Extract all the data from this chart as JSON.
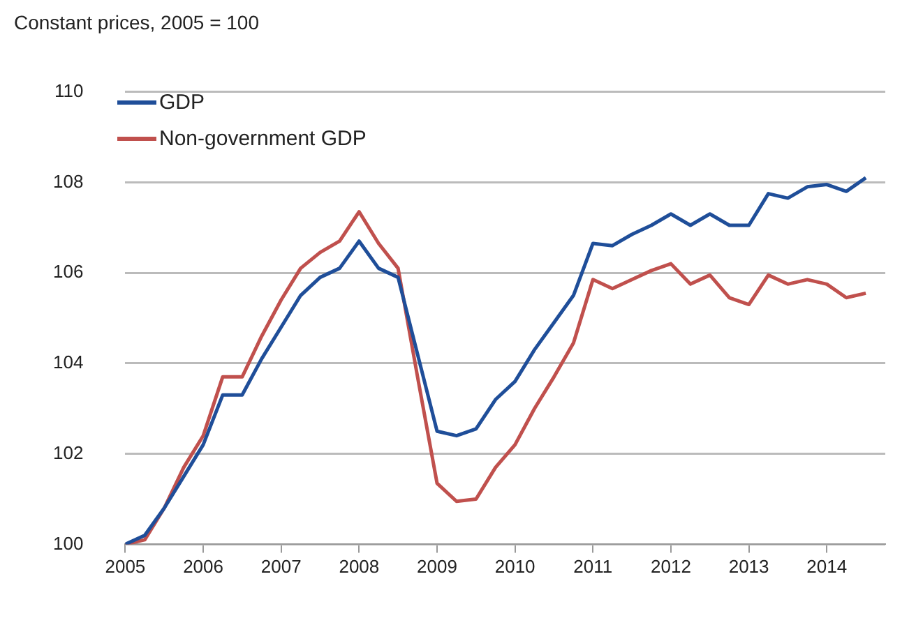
{
  "chart_data": {
    "type": "line",
    "ylabel": "Constant prices, 2005 = 100",
    "x": [
      2005,
      2005.25,
      2005.5,
      2005.75,
      2006,
      2006.25,
      2006.5,
      2006.75,
      2007,
      2007.25,
      2007.5,
      2007.75,
      2008,
      2008.25,
      2008.5,
      2008.75,
      2009,
      2009.25,
      2009.5,
      2009.75,
      2010,
      2010.25,
      2010.5,
      2010.75,
      2011,
      2011.25,
      2011.5,
      2011.75,
      2012,
      2012.25,
      2012.5,
      2012.75,
      2013,
      2013.25,
      2013.5,
      2013.75,
      2014,
      2014.25,
      2014.5
    ],
    "series": [
      {
        "name": "GDP",
        "color": "#1f4e99",
        "values": [
          100.0,
          100.2,
          100.8,
          101.5,
          102.2,
          103.3,
          103.3,
          104.1,
          104.8,
          105.5,
          105.9,
          106.1,
          106.7,
          106.1,
          105.9,
          104.2,
          102.5,
          102.4,
          102.55,
          103.2,
          103.6,
          104.3,
          104.9,
          105.5,
          106.65,
          106.6,
          106.85,
          107.05,
          107.3,
          107.05,
          107.3,
          107.05,
          107.05,
          107.75,
          107.65,
          107.9,
          107.95,
          107.8,
          108.1
        ]
      },
      {
        "name": "Non-government GDP",
        "color": "#c0504d",
        "values": [
          100.0,
          100.1,
          100.8,
          101.7,
          102.4,
          103.7,
          103.7,
          104.6,
          105.4,
          106.1,
          106.45,
          106.7,
          107.35,
          106.65,
          106.1,
          103.7,
          101.35,
          100.95,
          101.0,
          101.7,
          102.2,
          103.0,
          103.7,
          104.45,
          105.85,
          105.65,
          105.85,
          106.05,
          106.2,
          105.75,
          105.95,
          105.45,
          105.3,
          105.95,
          105.75,
          105.85,
          105.75,
          105.45,
          105.55
        ]
      }
    ],
    "xlim": [
      2005,
      2014.75
    ],
    "xticks": [
      2005,
      2006,
      2007,
      2008,
      2009,
      2010,
      2011,
      2012,
      2013,
      2014
    ],
    "ylim": [
      100,
      110
    ],
    "yticks": [
      100,
      102,
      104,
      106,
      108,
      110
    ],
    "grid": "y",
    "legend": "top left",
    "marker": "none",
    "line_style": "solid"
  }
}
